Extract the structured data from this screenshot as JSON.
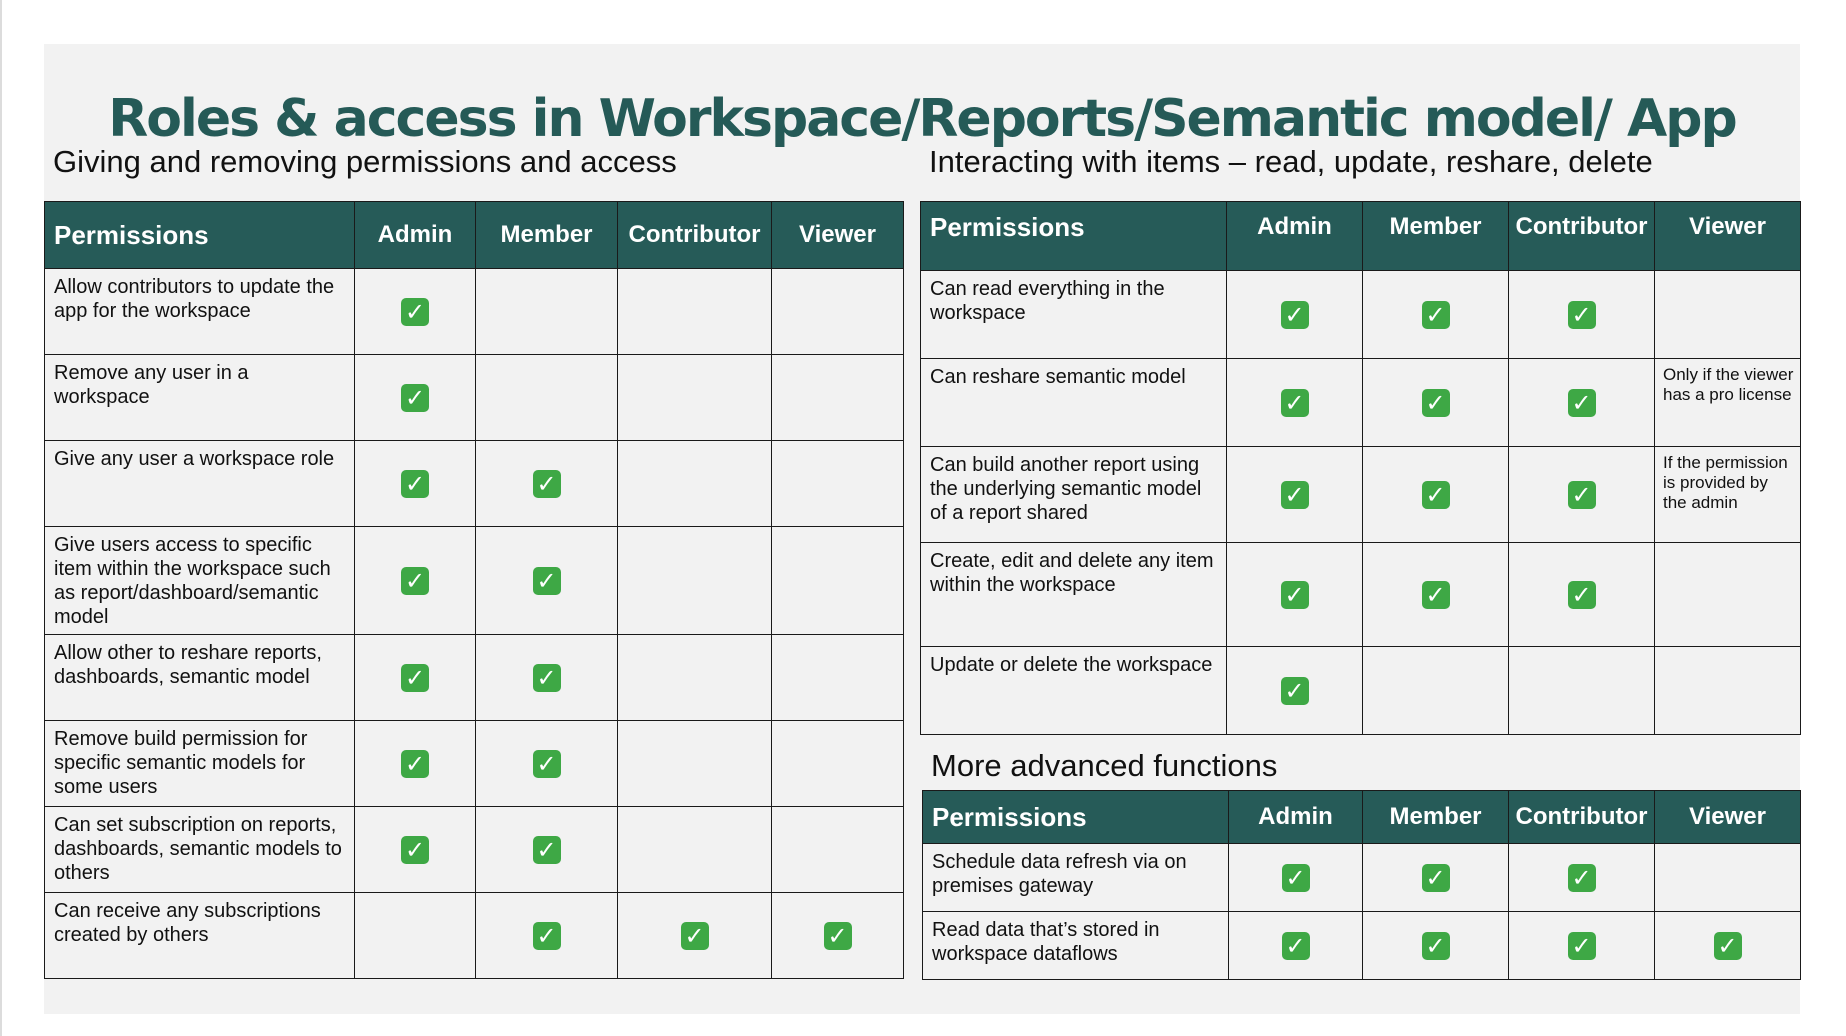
{
  "title": "Roles & access in Workspace/Reports/Semantic model/ App",
  "check_icon": {
    "glyph": "✓",
    "color": "#3ea845"
  },
  "colors": {
    "header_bg": "#265b58",
    "title_color": "#255a57",
    "slide_bg": "#f2f2f2"
  },
  "left": {
    "heading": "Giving and removing permissions and access",
    "columns": [
      "Permissions",
      "Admin",
      "Member",
      "Contributor",
      "Viewer"
    ],
    "rows": [
      {
        "permission": "Allow contributors to update the app for the workspace",
        "admin": true,
        "member": false,
        "contributor": false,
        "viewer": false
      },
      {
        "permission": "Remove any user in a workspace",
        "admin": true,
        "member": false,
        "contributor": false,
        "viewer": false
      },
      {
        "permission": "Give any user a workspace role",
        "admin": true,
        "member": true,
        "contributor": false,
        "viewer": false
      },
      {
        "permission": "Give users access to specific item within the workspace such as report/dashboard/semantic model",
        "admin": true,
        "member": true,
        "contributor": false,
        "viewer": false
      },
      {
        "permission": "Allow other to reshare reports, dashboards, semantic model",
        "admin": true,
        "member": true,
        "contributor": false,
        "viewer": false
      },
      {
        "permission": "Remove build permission for specific semantic models for some users",
        "admin": true,
        "member": true,
        "contributor": false,
        "viewer": false
      },
      {
        "permission": "Can set subscription on reports, dashboards, semantic models to others",
        "admin": true,
        "member": true,
        "contributor": false,
        "viewer": false
      },
      {
        "permission": "Can receive any subscriptions created by others",
        "admin": false,
        "member": true,
        "contributor": true,
        "viewer": true
      }
    ]
  },
  "right_top": {
    "heading": "Interacting with items – read, update, reshare, delete",
    "columns": [
      "Permissions",
      "Admin",
      "Member",
      "Contributor",
      "Viewer"
    ],
    "rows": [
      {
        "permission": "Can read everything in the workspace",
        "admin": true,
        "member": true,
        "contributor": true,
        "viewer": false,
        "viewer_note": ""
      },
      {
        "permission": "Can reshare semantic model",
        "admin": true,
        "member": true,
        "contributor": true,
        "viewer": false,
        "viewer_note": "Only if the viewer has a pro license"
      },
      {
        "permission": "Can build another report using the underlying semantic model of a report shared",
        "admin": true,
        "member": true,
        "contributor": true,
        "viewer": false,
        "viewer_note": "If the permission is provided by the admin"
      },
      {
        "permission": "Create, edit and delete any item within the workspace",
        "admin": true,
        "member": true,
        "contributor": true,
        "viewer": false,
        "viewer_note": ""
      },
      {
        "permission": "Update or delete the workspace",
        "admin": true,
        "member": false,
        "contributor": false,
        "viewer": false,
        "viewer_note": ""
      }
    ]
  },
  "right_bottom": {
    "heading": "More advanced functions",
    "columns": [
      "Permissions",
      "Admin",
      "Member",
      "Contributor",
      "Viewer"
    ],
    "rows": [
      {
        "permission": "Schedule data refresh via on premises gateway",
        "admin": true,
        "member": true,
        "contributor": true,
        "viewer": false
      },
      {
        "permission": "Read data that’s stored in workspace dataflows",
        "admin": true,
        "member": true,
        "contributor": true,
        "viewer": true
      }
    ]
  }
}
